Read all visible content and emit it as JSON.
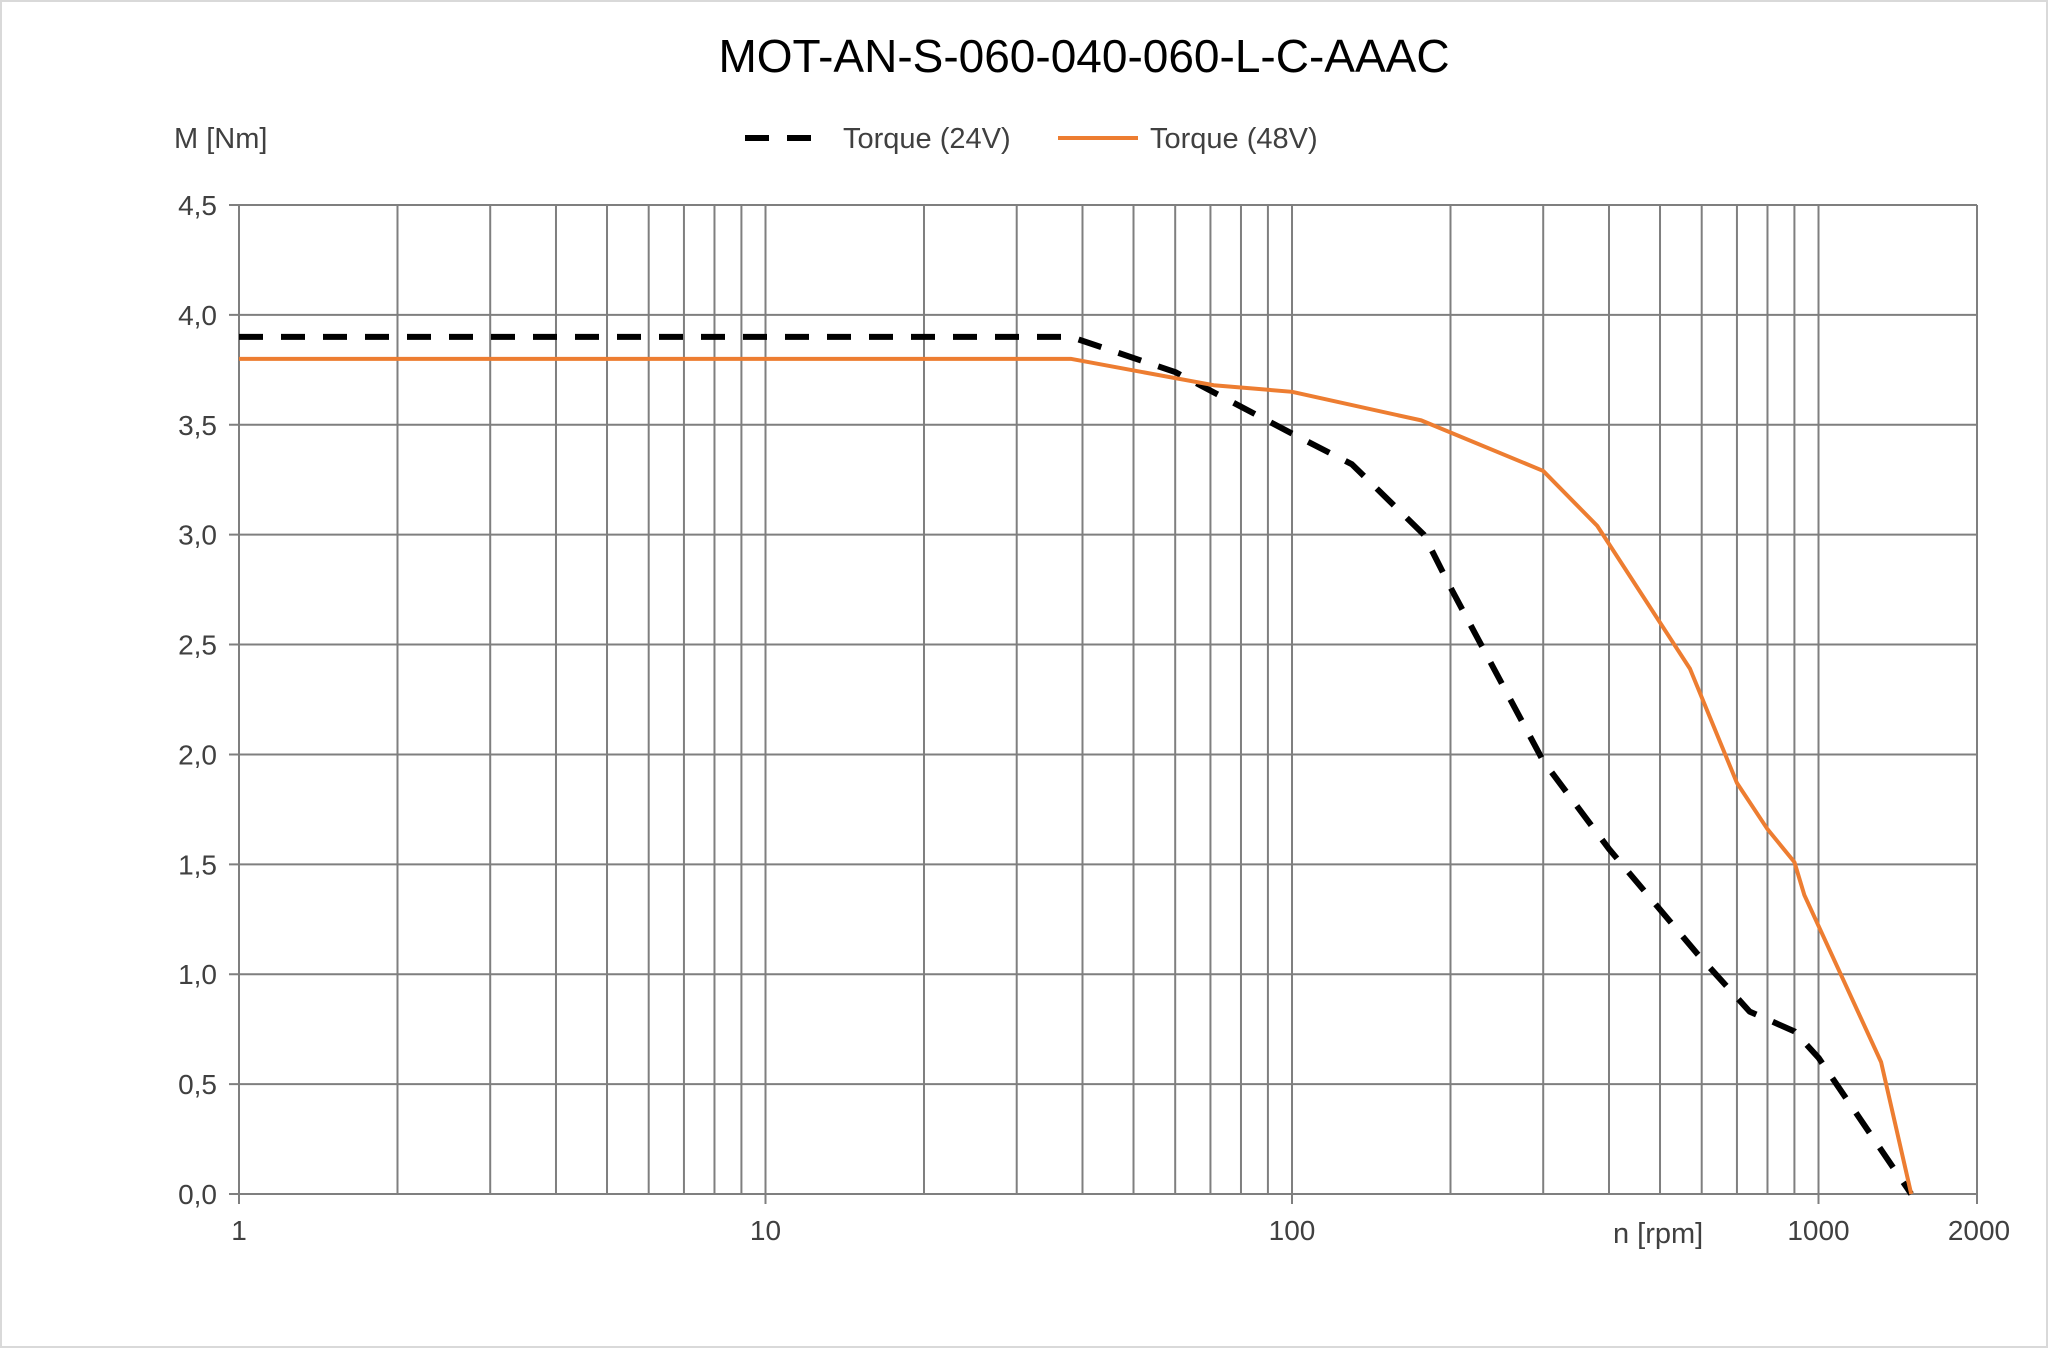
{
  "chart_data": {
    "type": "line",
    "title": "MOT-AN-S-060-040-060-L-C-AAAC",
    "ylabel": "M [Nm]",
    "xlabel": "n [rpm]",
    "x_scale": "log",
    "xlim": [
      1,
      2000
    ],
    "ylim": [
      0,
      4.5
    ],
    "x_tick_labels": [
      "1",
      "10",
      "100",
      "1000",
      "2000"
    ],
    "x_ticks": [
      1,
      10,
      100,
      1000,
      2000
    ],
    "y_ticks": [
      0,
      0.5,
      1,
      1.5,
      2,
      2.5,
      3,
      3.5,
      4,
      4.5
    ],
    "y_tick_labels": [
      "0,0",
      "0,5",
      "1,0",
      "1,5",
      "2,0",
      "2,5",
      "3,0",
      "3,5",
      "4,0",
      "4,5"
    ],
    "grid": true,
    "legend_position": "top",
    "series": [
      {
        "name": "Torque (24V)",
        "color": "#000000",
        "style": "dashed",
        "x": [
          1,
          38,
          60,
          100,
          130,
          178,
          200,
          300,
          400,
          590,
          740,
          900,
          1000,
          1500
        ],
        "y": [
          3.9,
          3.9,
          3.74,
          3.46,
          3.32,
          3.0,
          2.76,
          1.97,
          1.57,
          1.09,
          0.83,
          0.74,
          0.62,
          0.0
        ]
      },
      {
        "name": "Torque (48V)",
        "color": "#ed7d31",
        "style": "solid",
        "x": [
          1,
          38,
          71,
          100,
          176,
          300,
          380,
          570,
          700,
          800,
          900,
          940,
          1315,
          1500
        ],
        "y": [
          3.8,
          3.8,
          3.68,
          3.65,
          3.52,
          3.29,
          3.04,
          2.39,
          1.87,
          1.66,
          1.51,
          1.36,
          0.6,
          0.0
        ]
      }
    ]
  }
}
